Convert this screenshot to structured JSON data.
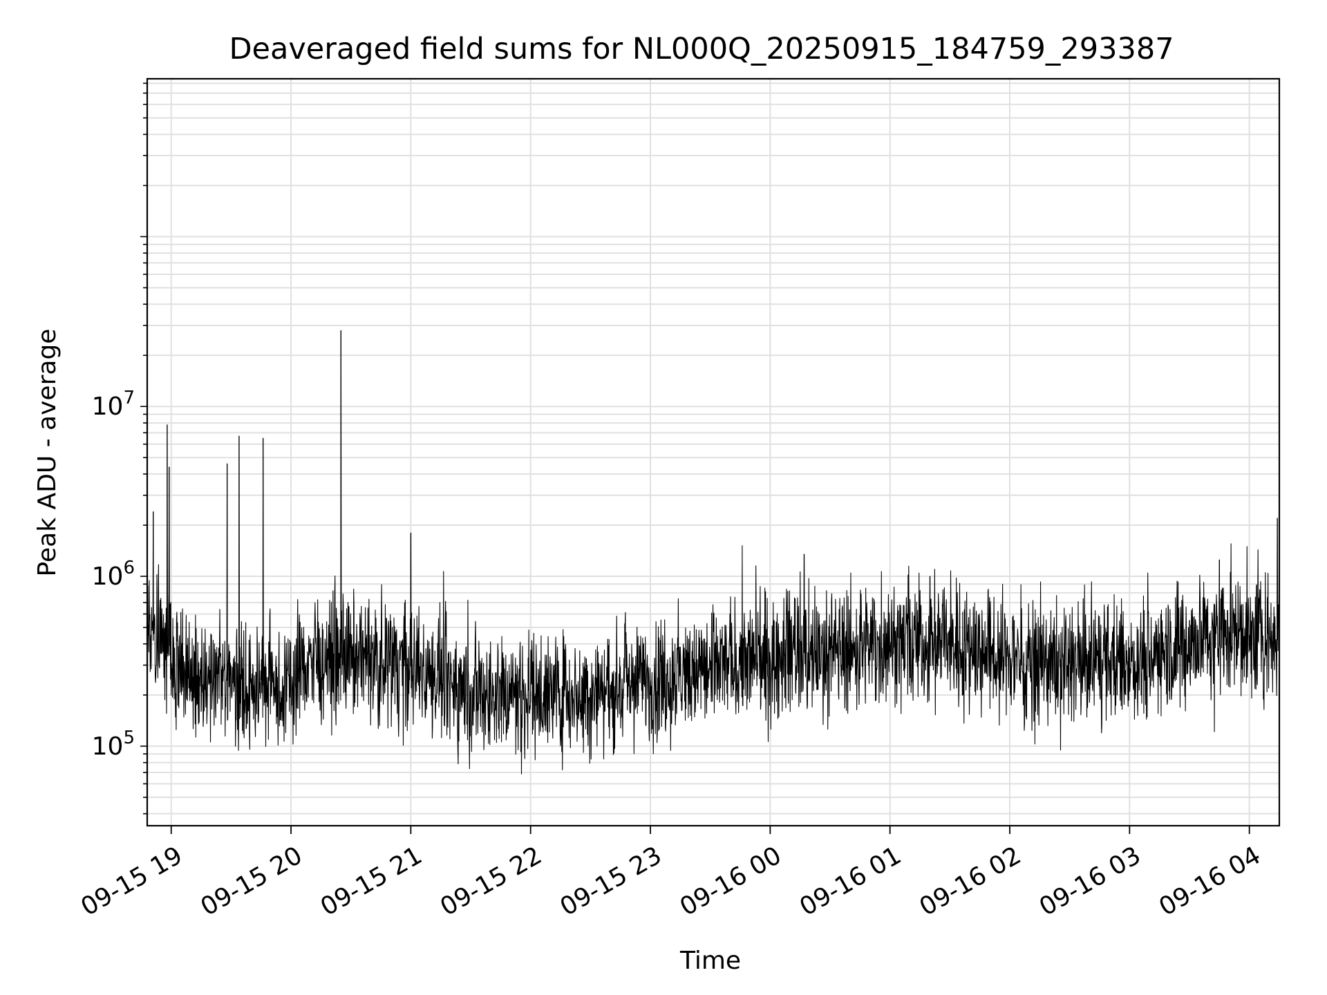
{
  "chart_data": {
    "type": "line",
    "title": "Deaveraged field sums for NL000Q_20250915_184759_293387",
    "xlabel": "Time",
    "ylabel": "Peak ADU - average",
    "yscale": "log",
    "ylim": [
      34000,
      850000000
    ],
    "xlim": [
      "2025-09-15 18:47:59",
      "2025-09-16 04:15:00"
    ],
    "grid": true,
    "line_color": "#000000",
    "grid_color": "#e0e0e0",
    "x_ticks": [
      {
        "t": "2025-09-15 19:00",
        "label": "09-15 19"
      },
      {
        "t": "2025-09-15 20:00",
        "label": "09-15 20"
      },
      {
        "t": "2025-09-15 21:00",
        "label": "09-15 21"
      },
      {
        "t": "2025-09-15 22:00",
        "label": "09-15 22"
      },
      {
        "t": "2025-09-15 23:00",
        "label": "09-15 23"
      },
      {
        "t": "2025-09-16 00:00",
        "label": "09-16 00"
      },
      {
        "t": "2025-09-16 01:00",
        "label": "09-16 01"
      },
      {
        "t": "2025-09-16 02:00",
        "label": "09-16 02"
      },
      {
        "t": "2025-09-16 03:00",
        "label": "09-16 03"
      },
      {
        "t": "2025-09-16 04:00",
        "label": "09-16 04"
      }
    ],
    "y_ticks": [
      {
        "value": 100000,
        "base": "10",
        "exp": "5"
      },
      {
        "value": 1000000,
        "base": "10",
        "exp": "6"
      },
      {
        "value": 10000000,
        "base": "10",
        "exp": "7"
      }
    ],
    "series": [
      {
        "points": [
          [
            "2025-09-15 18:48",
            600000
          ],
          [
            "2025-09-15 18:51",
            2400000
          ],
          [
            "2025-09-15 18:55",
            350000
          ],
          [
            "2025-09-15 18:58",
            7800000
          ],
          [
            "2025-09-15 18:59",
            4400000
          ],
          [
            "2025-09-15 19:05",
            250000
          ],
          [
            "2025-09-15 19:15",
            160000
          ],
          [
            "2025-09-15 19:28",
            4600000
          ],
          [
            "2025-09-15 19:34",
            6700000
          ],
          [
            "2025-09-15 19:40",
            250000
          ],
          [
            "2025-09-15 19:46",
            6500000
          ],
          [
            "2025-09-15 19:52",
            180000
          ],
          [
            "2025-09-15 20:05",
            200000
          ],
          [
            "2025-09-15 20:10",
            400000
          ],
          [
            "2025-09-15 20:25",
            28000000
          ],
          [
            "2025-09-15 20:40",
            350000
          ],
          [
            "2025-09-15 21:00",
            1800000
          ],
          [
            "2025-09-15 21:10",
            300000
          ],
          [
            "2025-09-15 21:30",
            200000
          ],
          [
            "2025-09-15 22:00",
            180000
          ],
          [
            "2025-09-15 22:30",
            220000
          ],
          [
            "2025-09-15 23:00",
            200000
          ],
          [
            "2025-09-15 23:30",
            300000
          ],
          [
            "2025-09-16 00:00",
            330000
          ],
          [
            "2025-09-16 00:17",
            1350000
          ],
          [
            "2025-09-16 00:30",
            400000
          ],
          [
            "2025-09-16 01:00",
            380000
          ],
          [
            "2025-09-16 01:20",
            1000000
          ],
          [
            "2025-09-16 01:30",
            500000
          ],
          [
            "2025-09-16 02:00",
            350000
          ],
          [
            "2025-09-16 02:30",
            330000
          ],
          [
            "2025-09-16 03:00",
            380000
          ],
          [
            "2025-09-16 03:30",
            550000
          ],
          [
            "2025-09-16 03:45",
            1250000
          ],
          [
            "2025-09-16 04:00",
            450000
          ],
          [
            "2025-09-16 04:14",
            2200000
          ]
        ]
      }
    ]
  }
}
